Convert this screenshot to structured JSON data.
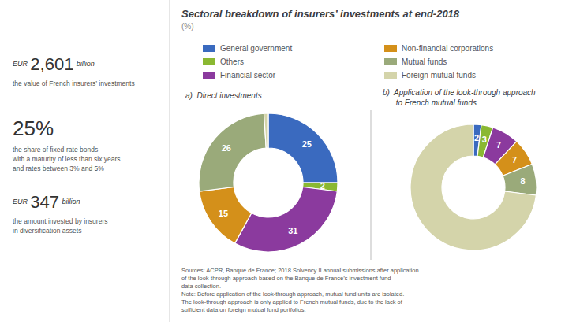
{
  "title": "Sectoral breakdown of insurers’ investments at end-2018",
  "subtitle": "(%)",
  "annotations": [
    [
      "EUR",
      "2,601",
      "billion",
      "the value of French insurers’ investments"
    ],
    [
      "25%",
      "the share of fixed-rate bonds\nwith a maturity of less than six years\nand rates between 3% and 5%"
    ],
    [
      "EUR",
      "347",
      "billion",
      "the amount invested by insurers\nin diversification assets"
    ],
    [
      "Sources: ACPR, Banque de France; 2018 Solvency II annual submissions after application\nof the look-through approach based on the Banque de France’s investment fund\ndata collection.\nNote: Before application of the look-through approach, mutual fund units are isolated.\nThe look-through approach is only applied to French mutual funds, due to the lack of\nsufficient data on foreign mutual fund portfolios."
    ]
  ],
  "chart_data": [
    {
      "type": "pie",
      "title": "a)  Direct investments",
      "categories": [
        "General government",
        "Others",
        "Financial sector",
        "Non-financial corporations",
        "Mutual funds",
        "Foreign mutual funds"
      ],
      "values": [
        25,
        2,
        31,
        15,
        26,
        1
      ],
      "value_labels": [
        "25",
        "2",
        "31",
        "15",
        "26",
        null
      ],
      "colors": [
        "#3a6abf",
        "#8ab832",
        "#8b3a9e",
        "#d4901a",
        "#9aaa7a",
        "#d4d4aa"
      ],
      "data_labels": true,
      "legend": "top"
    },
    {
      "type": "pie",
      "title": "b)  Application of the look-through approach\n      to French mutual funds",
      "categories": [
        "General government",
        "Others",
        "Financial sector",
        "Non-financial corporations",
        "Mutual funds",
        "Foreign mutual funds"
      ],
      "values": [
        2,
        3,
        7,
        7,
        8,
        73
      ],
      "value_labels": [
        "2",
        "3",
        "7",
        "7",
        "8",
        null
      ],
      "colors": [
        "#3a6abf",
        "#8ab832",
        "#8b3a9e",
        "#d4901a",
        "#9aaa7a",
        "#d4d4aa"
      ],
      "data_labels": true
    }
  ]
}
